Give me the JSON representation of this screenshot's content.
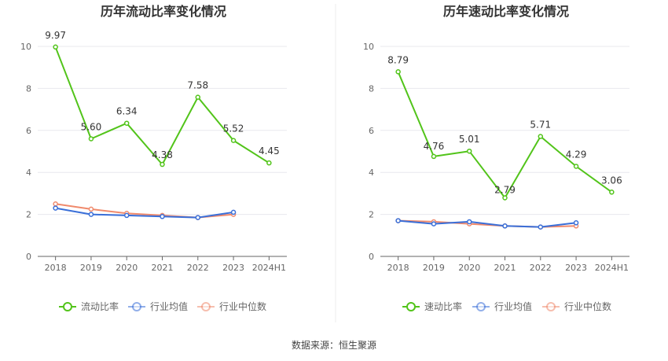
{
  "source_text": "数据来源：恒生聚源",
  "colors": {
    "main": "#52c41a",
    "avg": "#3a6fd8",
    "median": "#f08a6c",
    "grid": "#e8e8ee",
    "axis": "#666666"
  },
  "chart_data": [
    {
      "type": "line",
      "title": "历年流动比率变化情况",
      "categories": [
        "2018",
        "2019",
        "2020",
        "2021",
        "2022",
        "2023",
        "2024H1"
      ],
      "ylim": [
        0,
        10
      ],
      "yticks": [
        "0",
        "2",
        "4",
        "6",
        "8",
        "10"
      ],
      "grid": true,
      "legend_position": "bottom",
      "series": [
        {
          "name": "流动比率",
          "values": [
            9.97,
            5.6,
            6.34,
            4.38,
            7.58,
            5.52,
            4.45
          ],
          "labels": [
            "9.97",
            "5.60",
            "6.34",
            "4.38",
            "7.58",
            "5.52",
            "4.45"
          ]
        },
        {
          "name": "行业均值",
          "values": [
            2.3,
            2.0,
            1.95,
            1.9,
            1.85,
            2.1,
            null
          ]
        },
        {
          "name": "行业中位数",
          "values": [
            2.5,
            2.25,
            2.05,
            1.95,
            1.85,
            2.0,
            null
          ]
        }
      ]
    },
    {
      "type": "line",
      "title": "历年速动比率变化情况",
      "categories": [
        "2018",
        "2019",
        "2020",
        "2021",
        "2022",
        "2023",
        "2024H1"
      ],
      "ylim": [
        0,
        10
      ],
      "yticks": [
        "0",
        "2",
        "4",
        "6",
        "8",
        "10"
      ],
      "grid": true,
      "legend_position": "bottom",
      "series": [
        {
          "name": "速动比率",
          "values": [
            8.79,
            4.76,
            5.01,
            2.79,
            5.71,
            4.29,
            3.06
          ],
          "labels": [
            "8.79",
            "4.76",
            "5.01",
            "2.79",
            "5.71",
            "4.29",
            "3.06"
          ]
        },
        {
          "name": "行业均值",
          "values": [
            1.7,
            1.55,
            1.65,
            1.45,
            1.4,
            1.6,
            null
          ]
        },
        {
          "name": "行业中位数",
          "values": [
            1.7,
            1.65,
            1.55,
            1.45,
            1.4,
            1.45,
            null
          ]
        }
      ]
    }
  ]
}
